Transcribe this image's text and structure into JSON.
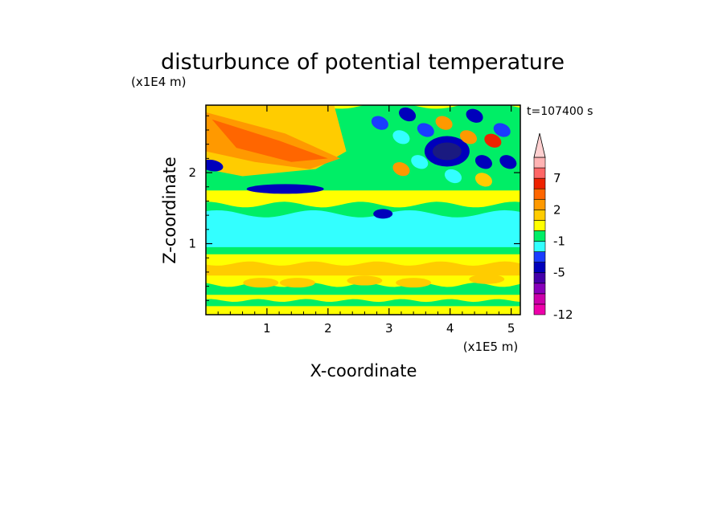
{
  "chart_data": {
    "type": "heatmap",
    "title": "disturbunce of potential temperature",
    "y_scale_note": "(x1E4 m)",
    "x_scale_note": "(x1E5 m)",
    "xlabel": "X-coordinate",
    "ylabel": "Z-coordinate",
    "time_label": "t=107400 s",
    "xlim": [
      0,
      5.15
    ],
    "ylim": [
      0,
      2.95
    ],
    "x_ticks": [
      "1",
      "2",
      "3",
      "4",
      "5"
    ],
    "x_tick_values": [
      1,
      2,
      3,
      4,
      5
    ],
    "y_ticks": [
      "1",
      "2"
    ],
    "y_tick_values": [
      1,
      2
    ],
    "colorbar": {
      "levels": [
        -12,
        -11,
        -9,
        -7,
        -5,
        -3,
        -2,
        -1,
        0,
        1,
        2,
        3,
        5,
        7,
        9,
        11
      ],
      "labels": [
        "-12",
        "-5",
        "-1",
        "2",
        "7"
      ],
      "label_values": [
        -12,
        -5,
        -1,
        2,
        7
      ],
      "extend": "max",
      "colors": [
        "#ee00aa",
        "#cc00aa",
        "#8800bb",
        "#4400aa",
        "#0000bb",
        "#1a3cff",
        "#33ffff",
        "#00ee66",
        "#ffff00",
        "#ffcc00",
        "#ff9900",
        "#ff6600",
        "#ee2200",
        "#ff6666",
        "#ffb3b3",
        "#ffd0d0"
      ]
    },
    "regions": [
      {
        "label": "upper-left warm band",
        "x": [
          0,
          2.2
        ],
        "z": [
          1.9,
          2.9
        ],
        "value": 3
      },
      {
        "label": "elongated cold band",
        "x": [
          0.7,
          2.0
        ],
        "z": [
          1.7,
          1.85
        ],
        "value": -4
      },
      {
        "label": "mid-level cold layer",
        "x": [
          0,
          5.15
        ],
        "z": [
          0.85,
          1.3
        ],
        "value": -1
      },
      {
        "label": "strong cold cell",
        "x": [
          3.7,
          4.2
        ],
        "z": [
          2.1,
          2.5
        ],
        "value": -6
      },
      {
        "label": "upper-right wave pattern",
        "x": [
          3.0,
          5.15
        ],
        "z": [
          1.8,
          2.95
        ],
        "value": 0
      },
      {
        "label": "lower warm layers",
        "x": [
          0,
          5.15
        ],
        "z": [
          0.1,
          0.8
        ],
        "value": 1
      }
    ]
  }
}
